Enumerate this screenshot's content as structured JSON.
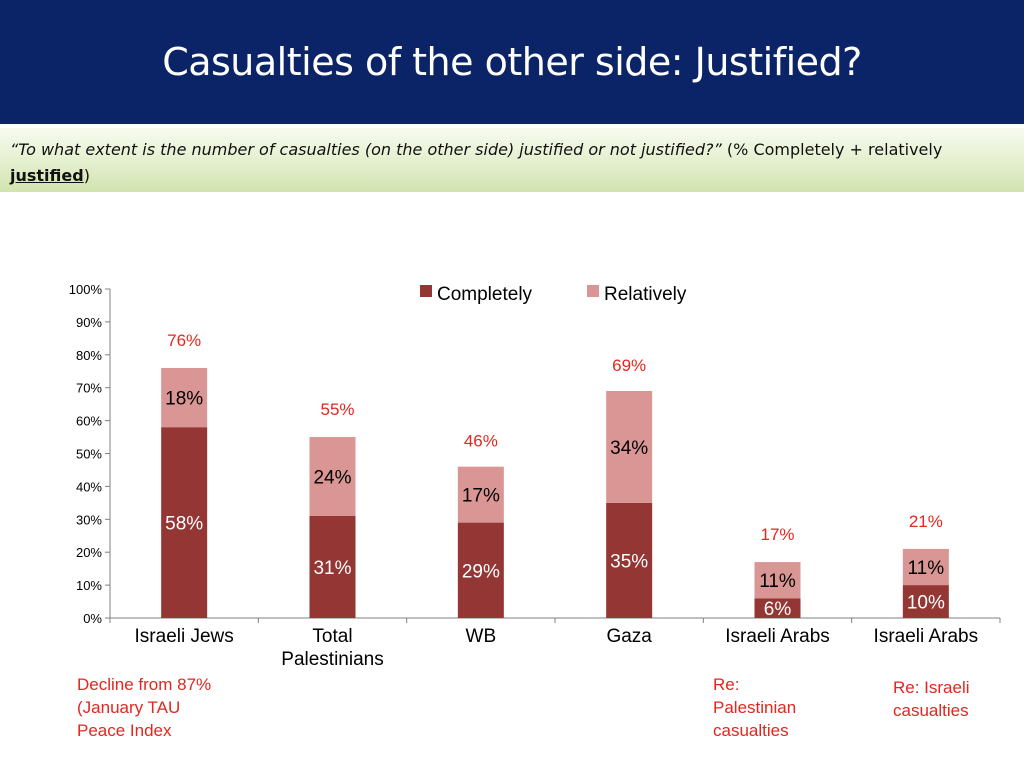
{
  "slide": {
    "title": "Casualties of the other side: Justified?",
    "question": "“To what extent is the number of casualties (on the other side) justified or not justified?”",
    "note_prefix": " (% Completely + relatively ",
    "note_highlight": "justified",
    "note_suffix": ")"
  },
  "chart_data": {
    "type": "bar",
    "stacked": true,
    "categories": [
      "Israeli Jews",
      "Total\nPalestinians",
      "WB",
      "Gaza",
      "Israeli Arabs",
      "Israeli Arabs"
    ],
    "series": [
      {
        "name": "Completely",
        "color": "#943634",
        "values": [
          58,
          31,
          29,
          35,
          6,
          10
        ],
        "labels": [
          "58%",
          "31%",
          "29%",
          "35%",
          "6%",
          "10%"
        ]
      },
      {
        "name": "Relatively",
        "color": "#d99694",
        "values": [
          18,
          24,
          17,
          34,
          11,
          11
        ],
        "labels": [
          "18%",
          "24%",
          "17%",
          "34%",
          "11%",
          "11%"
        ]
      }
    ],
    "totals": [
      76,
      55,
      46,
      69,
      17,
      21
    ],
    "total_labels": [
      "76%",
      "55%",
      "46%",
      "69%",
      "17%",
      "21%"
    ],
    "ylim": [
      0,
      100
    ],
    "y_ticks": [
      "0%",
      "10%",
      "20%",
      "30%",
      "40%",
      "50%",
      "60%",
      "70%",
      "80%",
      "90%",
      "100%"
    ],
    "legend_position": "top-right",
    "grid": false,
    "total_label_color": "#e3261f"
  },
  "annotations": {
    "decline": "Decline from 87%\n(January TAU\nPeace Index",
    "re_palestinian": "Re:\nPalestinian\ncasualties",
    "re_israeli": "Re: Israeli\ncasualties"
  }
}
